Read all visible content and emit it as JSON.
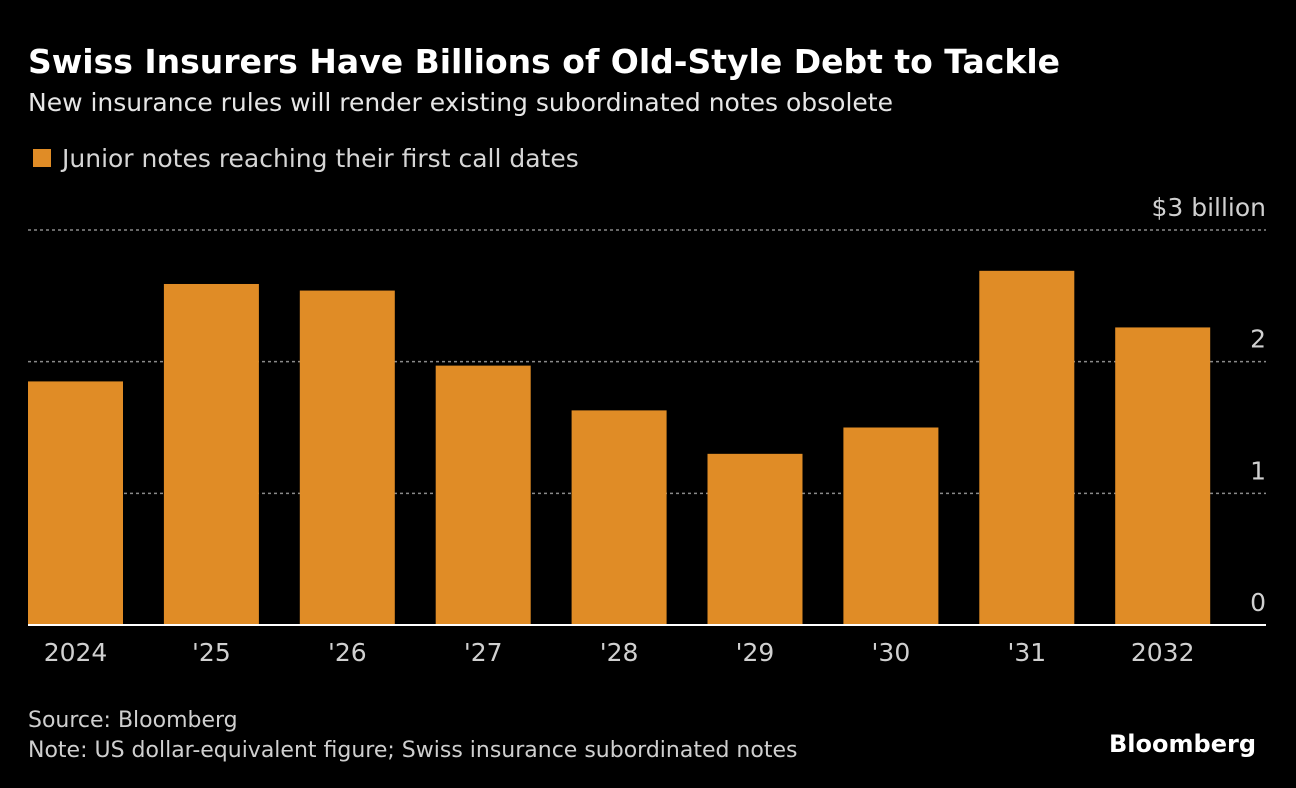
{
  "chart_data": {
    "type": "bar",
    "title": "Swiss Insurers Have Billions of Old-Style Debt to Tackle",
    "subtitle": "New insurance rules will render existing subordinated notes obsolete",
    "categories": [
      "2024",
      "'25",
      "'26",
      "'27",
      "'28",
      "'29",
      "'30",
      "'31",
      "2032"
    ],
    "series": [
      {
        "name": "Junior notes reaching their first call dates",
        "color": "#e08c26",
        "values": [
          1.85,
          2.59,
          2.54,
          1.97,
          1.63,
          1.3,
          1.5,
          2.69,
          2.26
        ]
      }
    ],
    "ylim": [
      0,
      3
    ],
    "yticks": [
      0,
      1,
      2,
      {
        "value": 3,
        "label": "$3 billion"
      }
    ],
    "grid": true,
    "source": "Source: Bloomberg",
    "note": "Note: US dollar-equivalent figure; Swiss insurance subordinated notes",
    "brand": "Bloomberg"
  }
}
